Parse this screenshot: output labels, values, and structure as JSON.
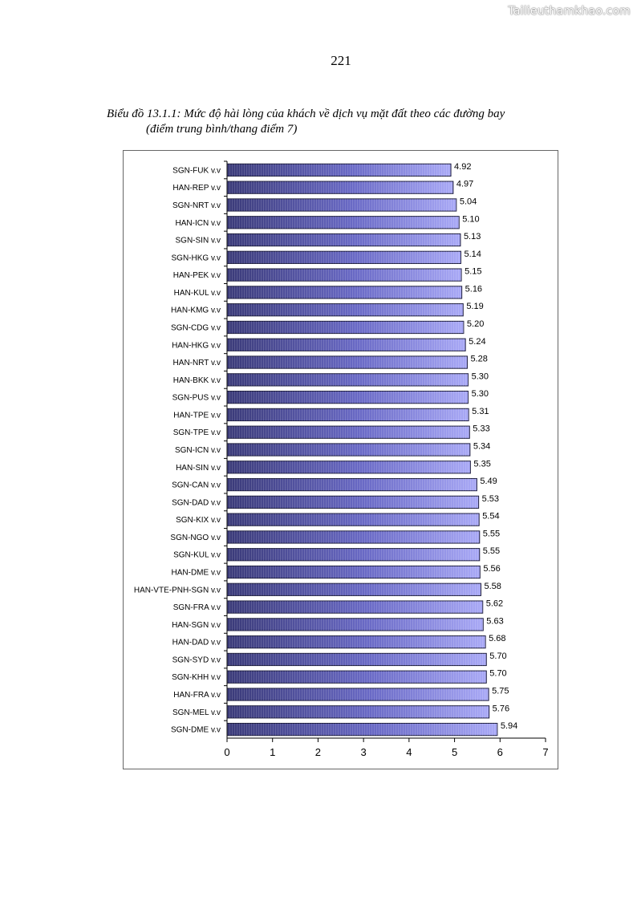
{
  "watermark": "Tailieuthamkhao.com",
  "page_number": "221",
  "caption": {
    "line1": "Biểu đồ 13.1.1: Mức độ hài lòng của khách về dịch vụ mặt đất theo các đường bay",
    "line2": "(điểm trung bình/thang điểm 7)"
  },
  "colors": {
    "bar_dark": "#3a3a78",
    "bar_mid": "#6a6ac6",
    "bar_light": "#a9a9f6",
    "bar_stroke": "#1c1c3c",
    "axis": "#000000"
  },
  "chart_data": {
    "type": "bar",
    "orientation": "horizontal",
    "title": "Biểu đồ 13.1.1: Mức độ hài lòng của khách về dịch vụ mặt đất theo các đường bay",
    "xlabel": "",
    "ylabel": "",
    "xlim": [
      0,
      7
    ],
    "xticks": [
      "0",
      "1",
      "2",
      "3",
      "4",
      "5",
      "6",
      "7"
    ],
    "grid": false,
    "legend": "none",
    "categories": [
      "SGN-FUK v.v",
      "HAN-REP v.v",
      "SGN-NRT v.v",
      "HAN-ICN v.v",
      "SGN-SIN v.v",
      "SGN-HKG v.v",
      "HAN-PEK v.v",
      "HAN-KUL v.v",
      "HAN-KMG v.v",
      "SGN-CDG v.v",
      "HAN-HKG v.v",
      "HAN-NRT v.v",
      "HAN-BKK v.v",
      "SGN-PUS v.v",
      "HAN-TPE v.v",
      "SGN-TPE v.v",
      "SGN-ICN v.v",
      "HAN-SIN v.v",
      "SGN-CAN v.v",
      "SGN-DAD v.v",
      "SGN-KIX v.v",
      "SGN-NGO v.v",
      "SGN-KUL v.v",
      "HAN-DME v.v",
      "HAN-VTE-PNH-SGN v.v",
      "SGN-FRA v.v",
      "HAN-SGN v.v",
      "HAN-DAD v.v",
      "SGN-SYD v.v",
      "SGN-KHH v.v",
      "HAN-FRA v.v",
      "SGN-MEL v.v",
      "SGN-DME v.v"
    ],
    "values": [
      4.92,
      4.97,
      5.04,
      5.1,
      5.13,
      5.14,
      5.15,
      5.16,
      5.19,
      5.2,
      5.24,
      5.28,
      5.3,
      5.3,
      5.31,
      5.33,
      5.34,
      5.35,
      5.49,
      5.53,
      5.54,
      5.55,
      5.55,
      5.56,
      5.58,
      5.62,
      5.63,
      5.68,
      5.7,
      5.7,
      5.75,
      5.76,
      5.94
    ],
    "value_labels": [
      "4.92",
      "4.97",
      "5.04",
      "5.10",
      "5.13",
      "5.14",
      "5.15",
      "5.16",
      "5.19",
      "5.20",
      "5.24",
      "5.28",
      "5.30",
      "5.30",
      "5.31",
      "5.33",
      "5.34",
      "5.35",
      "5.49",
      "5.53",
      "5.54",
      "5.55",
      "5.55",
      "5.56",
      "5.58",
      "5.62",
      "5.63",
      "5.68",
      "5.70",
      "5.70",
      "5.75",
      "5.76",
      "5.94"
    ]
  }
}
